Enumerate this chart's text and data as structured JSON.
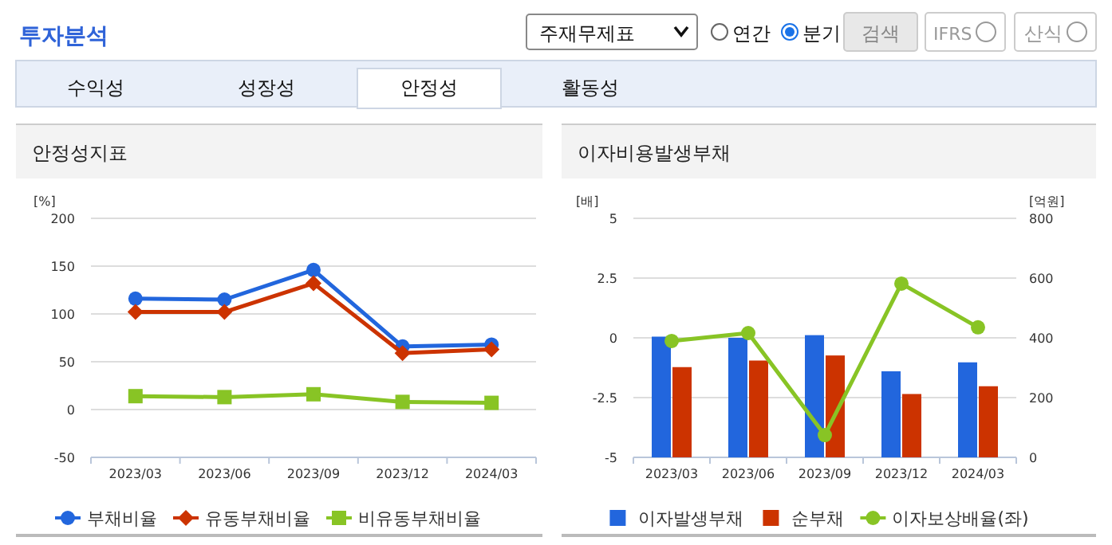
{
  "chart_data": [
    {
      "type": "other",
      "title": "투자분석",
      "annotations": [
        "주재무제표",
        "연간",
        "분기",
        "검색",
        "IFRS",
        "산식",
        "수익성",
        "성장성",
        "안정성",
        "활동성"
      ]
    },
    {
      "type": "line",
      "title": "안정성지표",
      "ylabel": "[%]",
      "categories": [
        "2023/03",
        "2023/06",
        "2023/09",
        "2023/12",
        "2024/03"
      ],
      "ylim": [
        -50,
        200
      ],
      "yticks": [
        -50,
        0,
        50,
        100,
        150,
        200
      ],
      "grid": "y",
      "legend": "bottom",
      "series": [
        {
          "name": "부채비율",
          "color": "#2266dd",
          "marker": "circle",
          "values": [
            116,
            115,
            146,
            66,
            68
          ]
        },
        {
          "name": "유동부채비율",
          "color": "#cc3300",
          "marker": "diamond",
          "values": [
            102,
            102,
            132,
            59,
            63
          ]
        },
        {
          "name": "비유동부채비율",
          "color": "#88c425",
          "marker": "square",
          "values": [
            14,
            13,
            16,
            8,
            7
          ]
        }
      ]
    },
    {
      "type": "bar",
      "title": "이자비용발생부채",
      "ylabel": "[배]",
      "y2label": "[억원]",
      "categories": [
        "2023/03",
        "2023/06",
        "2023/09",
        "2023/12",
        "2024/03"
      ],
      "ylim": [
        -5,
        5
      ],
      "yticks": [
        -5,
        -2.5,
        0,
        2.5,
        5
      ],
      "y2lim": [
        0,
        800
      ],
      "y2ticks": [
        0,
        200,
        400,
        600,
        800
      ],
      "grid": "y",
      "legend": "bottom",
      "series": [
        {
          "name": "이자발생부채",
          "color": "#2266dd",
          "axis": "y2",
          "values": [
            404,
            400,
            409,
            288,
            318
          ]
        },
        {
          "name": "순부채",
          "color": "#cc3300",
          "axis": "y2",
          "values": [
            302,
            324,
            341,
            212,
            238
          ]
        },
        {
          "name": "이자보상배율(좌)",
          "color": "#88c425",
          "type": "line",
          "marker": "circle",
          "axis": "y",
          "values": [
            -0.13,
            0.2,
            -4.07,
            2.27,
            0.44
          ]
        }
      ]
    }
  ]
}
